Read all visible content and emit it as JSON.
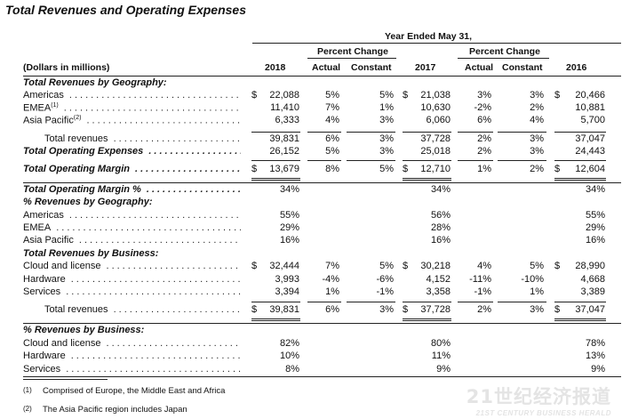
{
  "title": "Total Revenues and Operating Expenses",
  "header": {
    "period": "Year Ended May 31,",
    "pct_change": "Percent Change",
    "units": "(Dollars in millions)",
    "col_2018": "2018",
    "actual": "Actual",
    "constant": "Constant",
    "col_2017": "2017",
    "col_2016": "2016"
  },
  "rows": [
    {
      "label": "Total Revenues by Geography:",
      "type": "sec"
    },
    {
      "label": "Americas",
      "d": true,
      "v2018": "22,088",
      "a1": "5%",
      "c1": "5%",
      "v2017": "21,038",
      "a2": "3%",
      "c2": "3%",
      "v2016": "20,466",
      "type": "item"
    },
    {
      "label": "EMEA",
      "sup": "(1)",
      "v2018": "11,410",
      "a1": "7%",
      "c1": "1%",
      "v2017": "10,630",
      "a2": "-2%",
      "c2": "2%",
      "v2016": "10,881",
      "type": "item"
    },
    {
      "label": "Asia Pacific",
      "sup": "(2)",
      "v2018": "6,333",
      "a1": "4%",
      "c1": "3%",
      "v2017": "6,060",
      "a2": "6%",
      "c2": "4%",
      "v2016": "5,700",
      "type": "item"
    },
    {
      "label": "Total revenues",
      "v2018": "39,831",
      "a1": "6%",
      "c1": "3%",
      "v2017": "37,728",
      "a2": "2%",
      "c2": "3%",
      "v2016": "37,047",
      "type": "ind"
    },
    {
      "label": "Total Operating Expenses",
      "v2018": "26,152",
      "a1": "5%",
      "c1": "3%",
      "v2017": "25,018",
      "a2": "2%",
      "c2": "3%",
      "v2016": "24,443",
      "type": "sec2"
    },
    {
      "label": "Total Operating Margin",
      "d": true,
      "v2018": "13,679",
      "a1": "8%",
      "c1": "5%",
      "v2017": "12,710",
      "a2": "1%",
      "c2": "2%",
      "v2016": "12,604",
      "type": "sec2"
    },
    {
      "label": "Total Operating Margin %",
      "v2018": "34%",
      "v2017": "34%",
      "v2016": "34%",
      "type": "sec2"
    },
    {
      "label": "% Revenues by Geography:",
      "type": "sec"
    },
    {
      "label": "Americas",
      "v2018": "55%",
      "v2017": "56%",
      "v2016": "55%",
      "type": "item"
    },
    {
      "label": "EMEA",
      "v2018": "29%",
      "v2017": "28%",
      "v2016": "29%",
      "type": "item"
    },
    {
      "label": "Asia Pacific",
      "v2018": "16%",
      "v2017": "16%",
      "v2016": "16%",
      "type": "item"
    },
    {
      "label": "Total Revenues by Business:",
      "type": "sec"
    },
    {
      "label": "Cloud and license",
      "d": true,
      "v2018": "32,444",
      "a1": "7%",
      "c1": "5%",
      "v2017": "30,218",
      "a2": "4%",
      "c2": "5%",
      "v2016": "28,990",
      "type": "item"
    },
    {
      "label": "Hardware",
      "v2018": "3,993",
      "a1": "-4%",
      "c1": "-6%",
      "v2017": "4,152",
      "a2": "-11%",
      "c2": "-10%",
      "v2016": "4,668",
      "type": "item"
    },
    {
      "label": "Services",
      "v2018": "3,394",
      "a1": "1%",
      "c1": "-1%",
      "v2017": "3,358",
      "a2": "-1%",
      "c2": "1%",
      "v2016": "3,389",
      "type": "item"
    },
    {
      "label": "Total revenues",
      "d": true,
      "v2018": "39,831",
      "a1": "6%",
      "c1": "3%",
      "v2017": "37,728",
      "a2": "2%",
      "c2": "3%",
      "v2016": "37,047",
      "type": "ind"
    },
    {
      "label": "% Revenues by Business:",
      "type": "sec"
    },
    {
      "label": "Cloud and license",
      "v2018": "82%",
      "v2017": "80%",
      "v2016": "78%",
      "type": "item"
    },
    {
      "label": "Hardware",
      "v2018": "10%",
      "v2017": "11%",
      "v2016": "13%",
      "type": "item"
    },
    {
      "label": "Services",
      "v2018": "8%",
      "v2017": "9%",
      "v2016": "9%",
      "type": "item"
    }
  ],
  "currency_symbol": "$",
  "footnotes": [
    {
      "num": "(1)",
      "text": "Comprised of Europe, the Middle East and Africa"
    },
    {
      "num": "(2)",
      "text": "The Asia Pacific region includes Japan"
    }
  ],
  "watermark": {
    "cn": "21世纪经济报道",
    "en": "21ST CENTURY BUSINESS HERALD"
  }
}
